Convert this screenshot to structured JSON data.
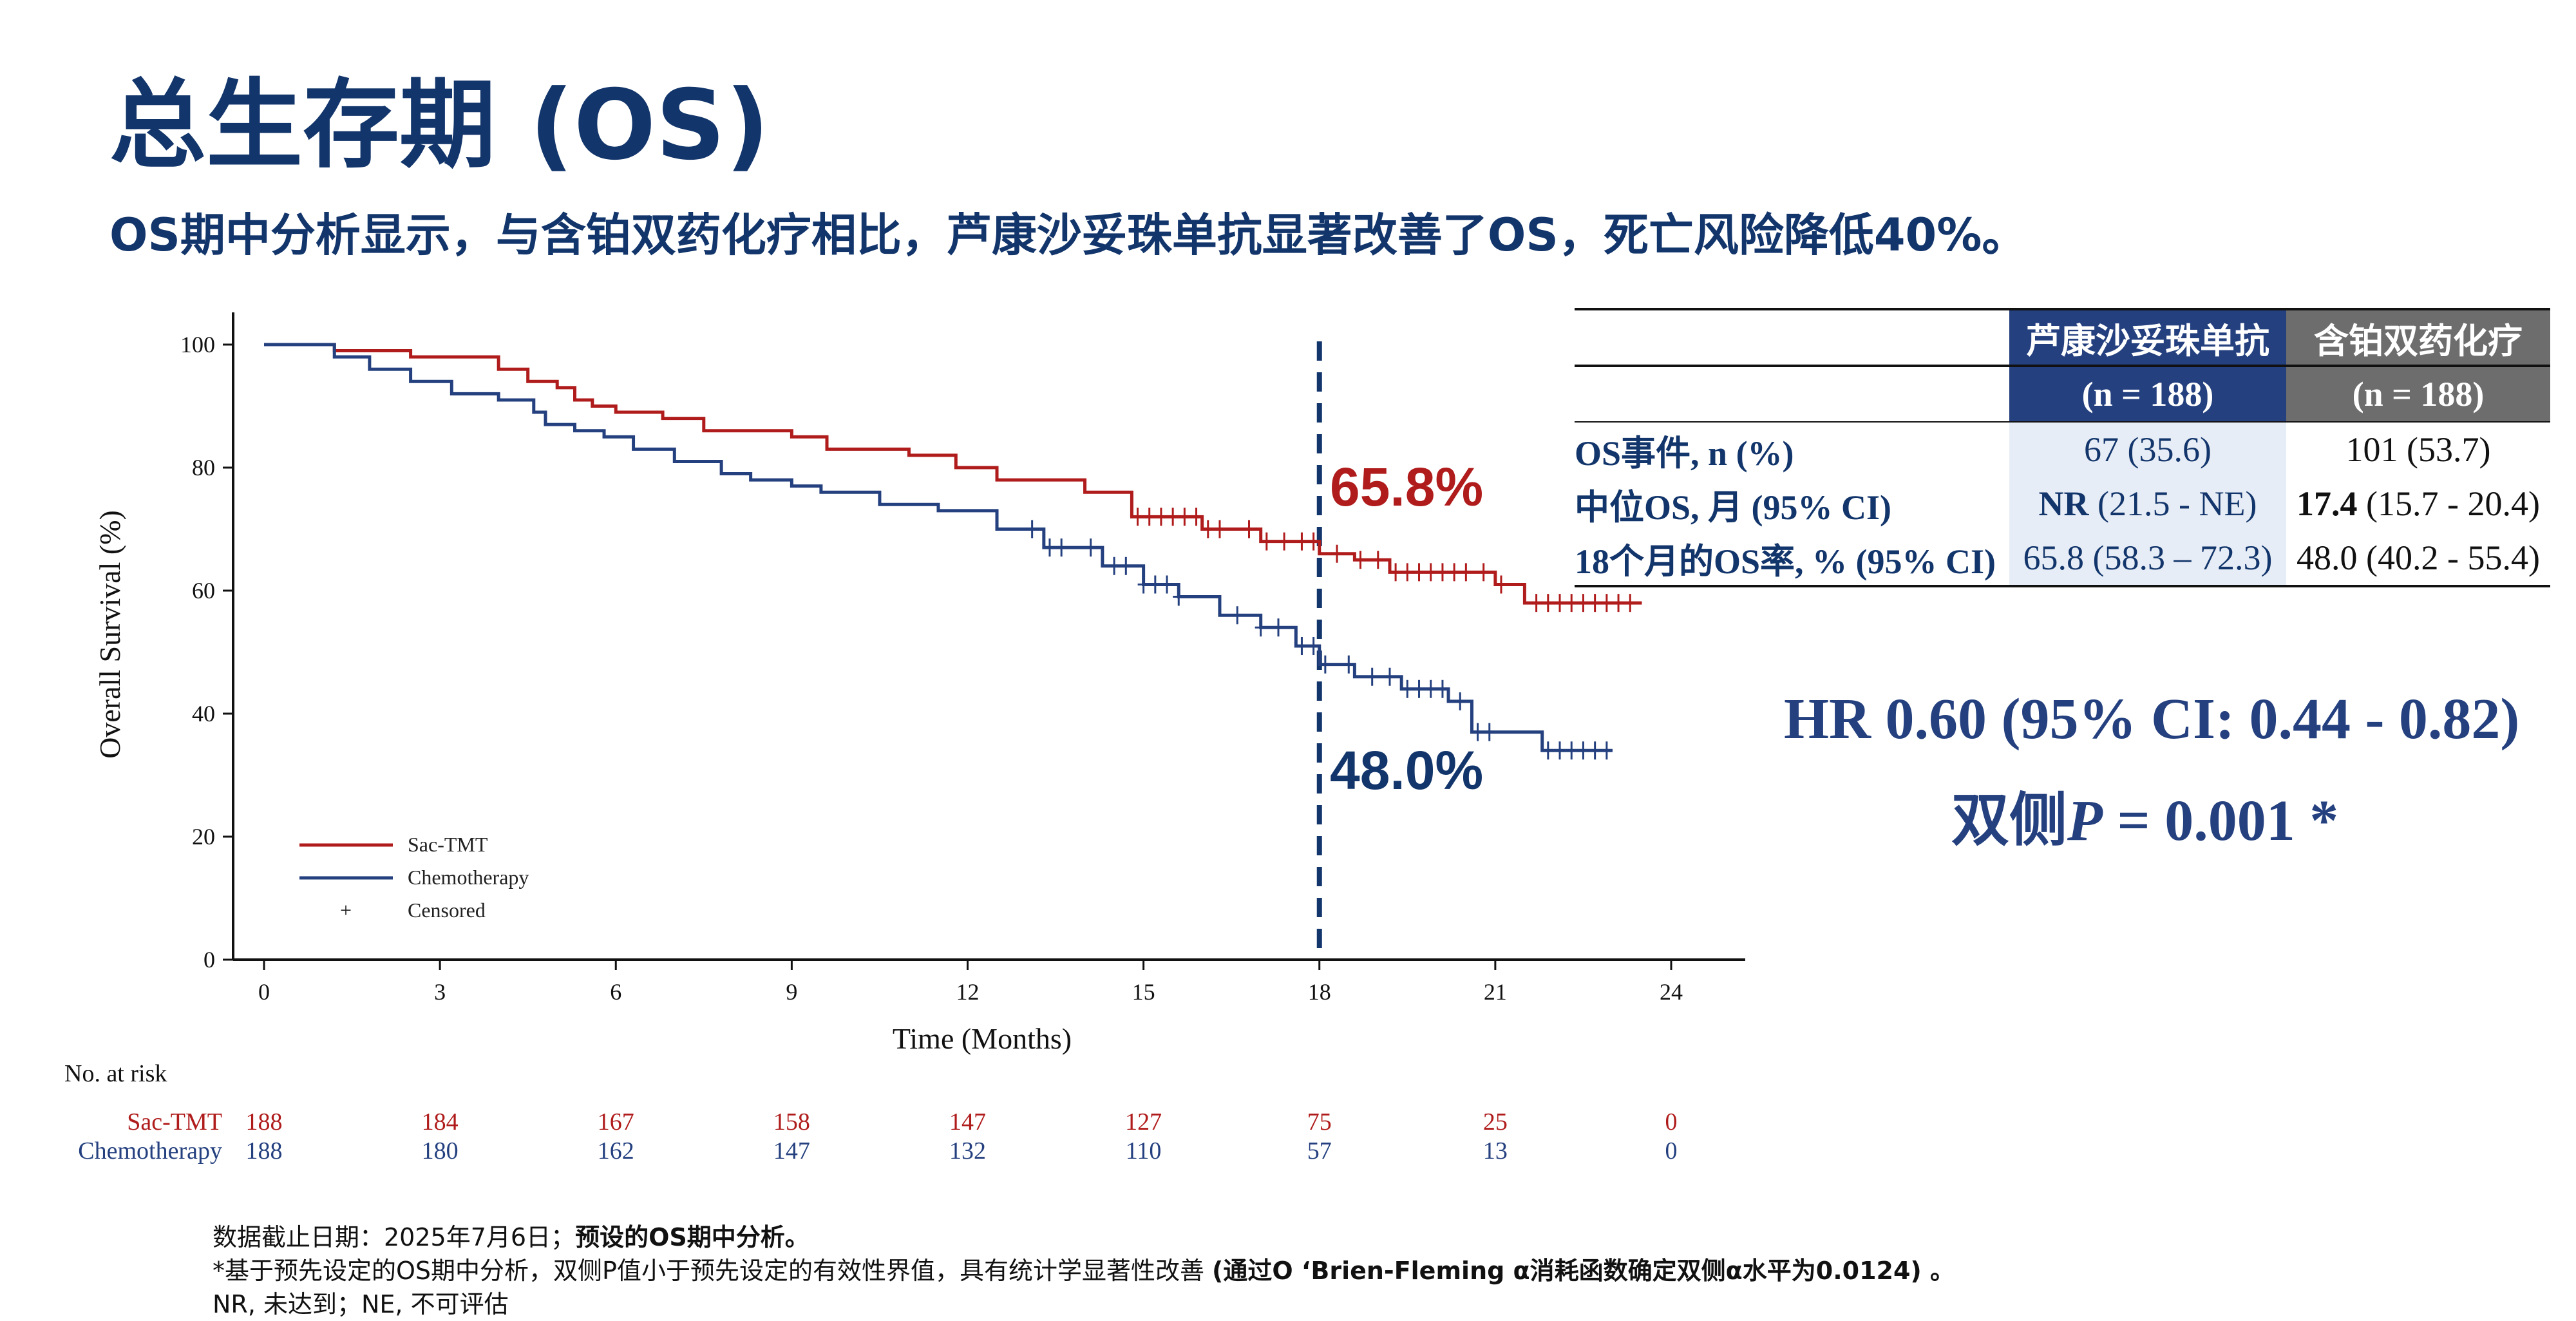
{
  "title": "总生存期 (OS)",
  "subtitle": "OS期中分析显示，与含铂双药化疗相比，芦康沙妥珠单抗显著改善了OS，死亡风险降低40%。",
  "chart_data": {
    "type": "line",
    "subtype": "kaplan-meier",
    "xlabel": "Time (Months)",
    "ylabel": "Overall Survival (%)",
    "xlim": [
      0,
      24
    ],
    "ylim": [
      0,
      100
    ],
    "xticks": [
      0,
      3,
      6,
      9,
      12,
      15,
      18,
      21,
      24
    ],
    "yticks": [
      0,
      20,
      40,
      60,
      80,
      100
    ],
    "legend_position": "bottom-left",
    "legend": [
      {
        "label": "Sac-TMT",
        "color": "#b01c1c",
        "kind": "line"
      },
      {
        "label": "Chemotherapy",
        "color": "#24407f",
        "kind": "line"
      },
      {
        "label": "Censored",
        "color": "#111111",
        "kind": "marker",
        "symbol": "+"
      }
    ],
    "reference_line_x": 18,
    "annotations": [
      {
        "text": "65.8%",
        "color": "#b01c1c"
      },
      {
        "text": "48.0%",
        "color": "#12356b"
      }
    ],
    "series": [
      {
        "name": "Sac-TMT",
        "color": "#b01c1c",
        "x": [
          0,
          0.5,
          1.2,
          1.6,
          2.5,
          3.2,
          4.0,
          4.5,
          5.0,
          5.3,
          5.6,
          6.0,
          6.8,
          7.5,
          8.5,
          9.0,
          9.6,
          11.0,
          11.8,
          12.5,
          13.0,
          14.0,
          14.8,
          16.0,
          17.0,
          18.0,
          18.6,
          19.2,
          20.0,
          21.0,
          21.5,
          22.3,
          23.5
        ],
        "y": [
          100,
          100,
          99,
          99,
          98,
          98,
          96,
          94,
          93,
          91,
          90,
          89,
          88,
          86,
          86,
          85,
          83,
          82,
          80,
          78,
          78,
          76,
          72,
          70,
          68,
          66,
          65,
          63,
          63,
          61,
          58,
          58,
          58
        ],
        "censor_x": [
          14.9,
          15.1,
          15.3,
          15.5,
          15.7,
          15.9,
          16.1,
          16.3,
          16.8,
          17.1,
          17.4,
          17.7,
          17.9,
          18.3,
          18.7,
          19.0,
          19.3,
          19.5,
          19.7,
          19.9,
          20.1,
          20.3,
          20.5,
          20.8,
          21.1,
          21.7,
          21.9,
          22.1,
          22.3,
          22.5,
          22.7,
          22.9,
          23.1,
          23.3
        ]
      },
      {
        "name": "Chemotherapy",
        "color": "#24407f",
        "x": [
          0,
          0.4,
          1.2,
          1.8,
          2.5,
          3.2,
          4.0,
          4.6,
          4.8,
          5.3,
          5.8,
          6.3,
          7.0,
          7.8,
          8.3,
          9.0,
          9.5,
          10.5,
          11.5,
          12.5,
          13.3,
          14.3,
          15.0,
          15.6,
          16.3,
          17.0,
          17.6,
          18.0,
          18.6,
          19.4,
          20.2,
          20.6,
          21.3,
          21.8,
          23.0
        ],
        "y": [
          100,
          100,
          98,
          96,
          94,
          92,
          91,
          89,
          87,
          86,
          85,
          83,
          81,
          79,
          78,
          77,
          76,
          74,
          73,
          70,
          67,
          64,
          61,
          59,
          56,
          54,
          51,
          48,
          46,
          44,
          42,
          37,
          37,
          34,
          34
        ],
        "censor_x": [
          13.1,
          13.4,
          13.6,
          14.1,
          14.5,
          14.7,
          15.0,
          15.2,
          15.4,
          15.6,
          16.6,
          17.0,
          17.3,
          17.7,
          17.9,
          18.1,
          18.5,
          18.9,
          19.2,
          19.5,
          19.7,
          19.9,
          20.1,
          20.4,
          20.7,
          20.9,
          21.9,
          22.1,
          22.3,
          22.5,
          22.7,
          22.9
        ]
      }
    ]
  },
  "table": {
    "header": {
      "sac_name": "芦康沙妥珠单抗",
      "sac_n": "(n = 188)",
      "chemo_name": "含铂双药化疗",
      "chemo_n": "(n = 188)"
    },
    "rows": [
      {
        "label": "OS事件, n (%)",
        "sac": "67 (35.6)",
        "chemo": "101 (53.7)"
      },
      {
        "label": "中位OS, 月 (95% CI)",
        "sac_bold": "NR",
        "sac_rest": " (21.5 - NE)",
        "chemo_bold": "17.4",
        "chemo_rest": " (15.7 - 20.4)"
      },
      {
        "label": "18个月的OS率, % (95% CI)",
        "sac": "65.8 (58.3 – 72.3)",
        "chemo": "48.0 (40.2 - 55.4)"
      }
    ]
  },
  "hr": {
    "line1": "HR 0.60 (95% CI: 0.44 - 0.82)",
    "line2_prefix": "双侧",
    "line2_p": "P",
    "line2_rest": " = 0.001 *"
  },
  "risk_table": {
    "title": "No. at risk",
    "timepoints": [
      0,
      3,
      6,
      9,
      12,
      15,
      18,
      21,
      24
    ],
    "rows": [
      {
        "label": "Sac-TMT",
        "values": [
          "188",
          "184",
          "167",
          "158",
          "147",
          "127",
          "75",
          "25",
          "0"
        ]
      },
      {
        "label": "Chemotherapy",
        "values": [
          "188",
          "180",
          "162",
          "147",
          "132",
          "110",
          "57",
          "13",
          "0"
        ]
      }
    ]
  },
  "footnotes": {
    "line1_plain": "数据截止日期：2025年7月6日；",
    "line1_bold": "预设的OS期中分析。",
    "line2_plain": "*基于预先设定的OS期中分析，双侧P值小于预先设定的有效性界值，具有统计学显著性改善 ",
    "line2_bold": "(通过O ‘Brien-Fleming α消耗函数确定双侧α水平为0.0124) 。",
    "line3": "NR, 未达到；NE, 不可评估"
  }
}
